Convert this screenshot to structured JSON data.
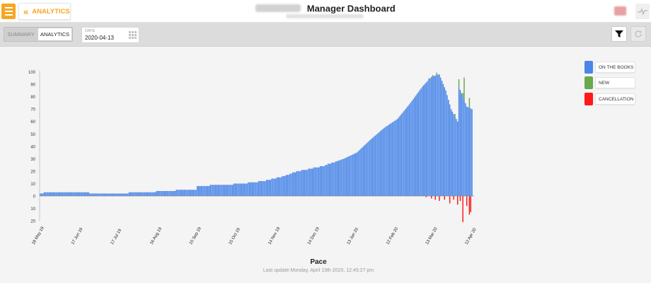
{
  "header": {
    "back_label": "ANALYTICS",
    "title": "Manager Dashboard"
  },
  "toolbar": {
    "tabs": [
      {
        "label": "SUMMARY",
        "active": false
      },
      {
        "label": "ANALYTICS",
        "active": true
      }
    ],
    "date_caption": "DATE",
    "date_value": "2020-04-13"
  },
  "colors": {
    "accent": "#f5a623",
    "on_the_books": "#4a86e8",
    "new": "#6aa84f",
    "cancellation": "#ff1a1a"
  },
  "icons": [
    "menu-icon",
    "double-chevron-left-icon",
    "calendar-icon",
    "filter-icon",
    "refresh-icon",
    "pulse-icon"
  ],
  "legend": {
    "items": [
      {
        "label": "ON THE BOOKS",
        "color": "#4a86e8"
      },
      {
        "label": "NEW",
        "color": "#6aa84f"
      },
      {
        "label": "CANCELLATION",
        "color": "#ff1a1a"
      }
    ]
  },
  "footer": {
    "chart_title": "Pace",
    "last_update": "Last update:Monday, April 13th 2020, 12:45:27 pm"
  },
  "chart_data": {
    "type": "bar",
    "title": "Pace",
    "xlabel": "",
    "ylabel": "",
    "ylim": [
      -20,
      100
    ],
    "yticks_top": [
      0,
      10,
      20,
      30,
      40,
      50,
      60,
      70,
      80,
      90,
      100
    ],
    "yticks_bottom": [
      10,
      20
    ],
    "x_tick_labels": [
      "18 May 19",
      "17 Jun 19",
      "17 Jul 19",
      "16 Aug 19",
      "15 Sep 19",
      "15 Oct 19",
      "14 Nov 19",
      "14 Dec 19",
      "13 Jan 20",
      "12 Feb 20",
      "13 Mar 20",
      "12 Apr 20"
    ],
    "x_start": "2019-05-18",
    "x_end": "2020-04-12",
    "legend_position": "right",
    "series": [
      {
        "name": "ON THE BOOKS",
        "color": "#4a86e8",
        "keypoints": [
          [
            "2019-05-18",
            2
          ],
          [
            "2019-05-24",
            3
          ],
          [
            "2019-06-24",
            3
          ],
          [
            "2019-06-25",
            2
          ],
          [
            "2019-07-24",
            2
          ],
          [
            "2019-07-25",
            3
          ],
          [
            "2019-08-14",
            3
          ],
          [
            "2019-08-15",
            4
          ],
          [
            "2019-09-14",
            5
          ],
          [
            "2019-09-15",
            8
          ],
          [
            "2019-10-05",
            9
          ],
          [
            "2019-10-20",
            10
          ],
          [
            "2019-11-05",
            12
          ],
          [
            "2019-11-20",
            16
          ],
          [
            "2019-12-01",
            20
          ],
          [
            "2019-12-20",
            24
          ],
          [
            "2020-01-05",
            30
          ],
          [
            "2020-01-15",
            35
          ],
          [
            "2020-01-25",
            45
          ],
          [
            "2020-02-05",
            55
          ],
          [
            "2020-02-15",
            62
          ],
          [
            "2020-02-25",
            75
          ],
          [
            "2020-03-05",
            88
          ],
          [
            "2020-03-12",
            96
          ],
          [
            "2020-03-18",
            98
          ],
          [
            "2020-03-23",
            85
          ],
          [
            "2020-03-27",
            70
          ],
          [
            "2020-04-01",
            60
          ],
          [
            "2020-04-02",
            88
          ],
          [
            "2020-04-05",
            80
          ],
          [
            "2020-04-08",
            72
          ],
          [
            "2020-04-12",
            70
          ]
        ]
      },
      {
        "name": "NEW",
        "color": "#6aa84f",
        "values_note": "small positive increments stacked on top",
        "points": [
          [
            "2020-03-10",
            1
          ],
          [
            "2020-03-13",
            1
          ],
          [
            "2020-03-16",
            2
          ],
          [
            "2020-03-30",
            2
          ],
          [
            "2020-04-02",
            6
          ],
          [
            "2020-04-05",
            3
          ],
          [
            "2020-04-06",
            18
          ],
          [
            "2020-04-10",
            8
          ]
        ]
      },
      {
        "name": "CANCELLATION",
        "color": "#ff1a1a",
        "points": [
          [
            "2020-03-08",
            -1
          ],
          [
            "2020-03-12",
            -2
          ],
          [
            "2020-03-15",
            -3
          ],
          [
            "2020-03-18",
            -4
          ],
          [
            "2020-03-22",
            -3
          ],
          [
            "2020-03-26",
            -6
          ],
          [
            "2020-03-29",
            -3
          ],
          [
            "2020-04-01",
            -7
          ],
          [
            "2020-04-03",
            -4
          ],
          [
            "2020-04-05",
            -21
          ],
          [
            "2020-04-08",
            -8
          ],
          [
            "2020-04-10",
            -15
          ],
          [
            "2020-04-11",
            -13
          ]
        ]
      }
    ]
  }
}
